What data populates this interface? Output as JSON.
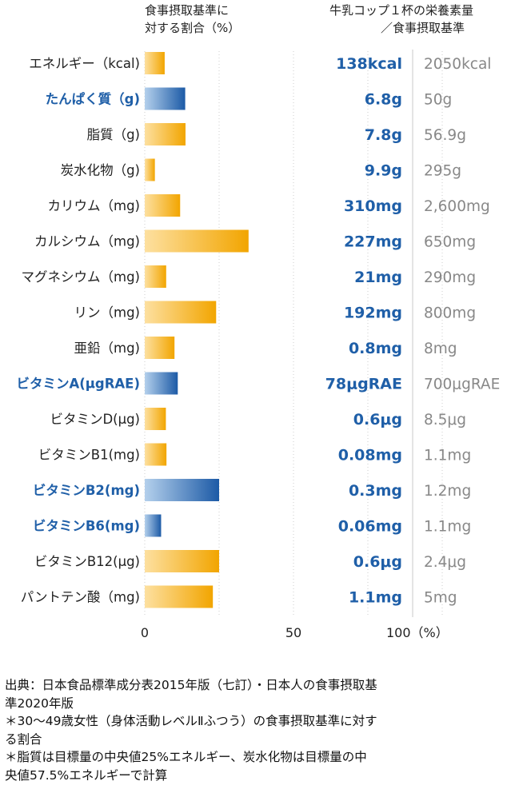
{
  "header": {
    "ratio_line1": "食事摂取基準に",
    "ratio_line2": "対する割合（%）",
    "intake_line1": "牛乳コップ１杯の栄養素量",
    "intake_line2": "／食事摂取基準"
  },
  "chart_data": {
    "type": "bar",
    "orientation": "horizontal",
    "xlim": [
      0,
      100
    ],
    "x_ticks": [
      "0",
      "50",
      "100（%）"
    ],
    "gridlines": [
      25,
      50,
      75,
      100
    ],
    "rows": [
      {
        "label": "エネルギー（kcal)",
        "value": 6.7,
        "amount": "138kcal",
        "standard": "2050kcal",
        "highlight": false
      },
      {
        "label": "たんぱく質（g)",
        "value": 13.6,
        "amount": "6.8g",
        "standard": "50g",
        "highlight": true
      },
      {
        "label": "脂質（g)",
        "value": 13.7,
        "amount": "7.8g",
        "standard": "56.9g",
        "highlight": false
      },
      {
        "label": "炭水化物（g)",
        "value": 3.4,
        "amount": "9.9g",
        "standard": "295g",
        "highlight": false
      },
      {
        "label": "カリウム（mg)",
        "value": 11.9,
        "amount": "310mg",
        "standard": "2,600mg",
        "highlight": false
      },
      {
        "label": "カルシウム（mg)",
        "value": 34.9,
        "amount": "227mg",
        "standard": "650mg",
        "highlight": false
      },
      {
        "label": "マグネシウム（mg)",
        "value": 7.2,
        "amount": "21mg",
        "standard": "290mg",
        "highlight": false
      },
      {
        "label": "リン（mg)",
        "value": 24.0,
        "amount": "192mg",
        "standard": "800mg",
        "highlight": false
      },
      {
        "label": "亜鉛（mg)",
        "value": 10.0,
        "amount": "0.8mg",
        "standard": "8mg",
        "highlight": false
      },
      {
        "label": "ビタミンA(μgRAE)",
        "value": 11.1,
        "amount": "78μgRAE",
        "standard": "700μgRAE",
        "highlight": true
      },
      {
        "label": "ビタミンD(μg)",
        "value": 7.1,
        "amount": "0.6μg",
        "standard": "8.5μg",
        "highlight": false
      },
      {
        "label": "ビタミンB1(mg)",
        "value": 7.3,
        "amount": "0.08mg",
        "standard": "1.1mg",
        "highlight": false
      },
      {
        "label": "ビタミンB2(mg)",
        "value": 25.0,
        "amount": "0.3mg",
        "standard": "1.2mg",
        "highlight": true
      },
      {
        "label": "ビタミンB6(mg)",
        "value": 5.5,
        "amount": "0.06mg",
        "standard": "1.1mg",
        "highlight": true
      },
      {
        "label": "ビタミンB12(μg)",
        "value": 25.0,
        "amount": "0.6μg",
        "standard": "2.4μg",
        "highlight": false
      },
      {
        "label": "パントテン酸（mg)",
        "value": 22.9,
        "amount": "1.1mg",
        "standard": "5mg",
        "highlight": false
      }
    ],
    "colors": {
      "bar_orange_light": "#fcd07a",
      "bar_orange_dark": "#f2a500",
      "bar_blue_light": "#a9c8e8",
      "bar_blue_dark": "#1c5aa6",
      "label_highlight": "#1f5fa8",
      "amount_text": "#1f5fa8",
      "standard_text": "#888888",
      "grid": "#cccccc",
      "divider": "#c8c8c8"
    }
  },
  "source": {
    "line1": "出典：日本食品標準成分表2015年版（七訂）・日本人の食事摂取基",
    "line2": "準2020年版",
    "line3": "＊30〜49歳女性（身体活動レベルⅡふつう）の食事摂取基準に対す",
    "line4": "る割合",
    "line5": "＊脂質は目標量の中央値25%エネルギー、炭水化物は目標量の中",
    "line6": "央値57.5%エネルギーで計算"
  }
}
